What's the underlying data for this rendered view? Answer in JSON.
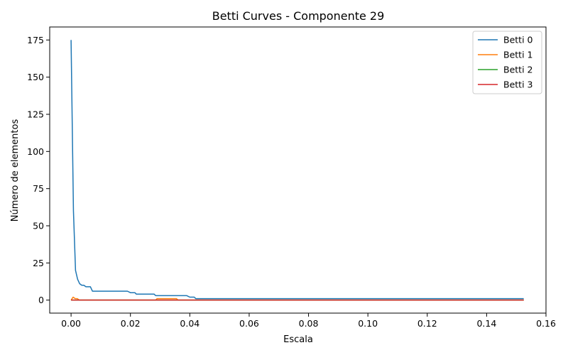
{
  "chart_data": {
    "type": "line",
    "title": "Betti Curves - Componente 29",
    "xlabel": "Escala",
    "ylabel": "Número de elementos",
    "xlim": [
      -0.0072,
      0.16
    ],
    "ylim": [
      -8.75,
      183.75
    ],
    "xticks": [
      0.0,
      0.02,
      0.04,
      0.06,
      0.08,
      0.1,
      0.12,
      0.14,
      0.16
    ],
    "xtick_labels": [
      "0.00",
      "0.02",
      "0.04",
      "0.06",
      "0.08",
      "0.10",
      "0.12",
      "0.14",
      "0.16"
    ],
    "yticks": [
      0,
      25,
      50,
      75,
      100,
      125,
      150,
      175
    ],
    "ytick_labels": [
      "0",
      "25",
      "50",
      "75",
      "100",
      "125",
      "150",
      "175"
    ],
    "grid": false,
    "legend_position": "top-right",
    "series": [
      {
        "name": "Betti 0",
        "color": "#1f77b4",
        "x": [
          0,
          0.0008,
          0.0015,
          0.0022,
          0.0029,
          0.0036,
          0.0043,
          0.005,
          0.0057,
          0.0065,
          0.0072,
          0.0079,
          0.01,
          0.015,
          0.019,
          0.02,
          0.021,
          0.0215,
          0.022,
          0.025,
          0.028,
          0.0285,
          0.03,
          0.035,
          0.0385,
          0.039,
          0.04,
          0.041,
          0.0415,
          0.042,
          0.05,
          0.08,
          0.1,
          0.12,
          0.14,
          0.1525
        ],
        "y": [
          175,
          60,
          20,
          14,
          11,
          10,
          10,
          9,
          9,
          9,
          6,
          6,
          6,
          6,
          6,
          5,
          5,
          5,
          4,
          4,
          4,
          3,
          3,
          3,
          3,
          3,
          2,
          2,
          2,
          1,
          1,
          1,
          1,
          1,
          1,
          1
        ]
      },
      {
        "name": "Betti 1",
        "color": "#ff7f0e",
        "x": [
          0,
          0.0007,
          0.0014,
          0.0021,
          0.0028,
          0.0035,
          0.005,
          0.01,
          0.02,
          0.0285,
          0.029,
          0.03,
          0.0325,
          0.035,
          0.0355,
          0.036,
          0.04,
          0.06,
          0.1,
          0.1525
        ],
        "y": [
          0,
          2,
          1,
          1,
          0,
          0,
          0,
          0,
          0,
          0,
          1,
          1,
          1,
          1,
          1,
          0,
          0,
          0,
          0,
          0
        ]
      },
      {
        "name": "Betti 2",
        "color": "#2ca02c",
        "x": [
          0,
          0.05,
          0.1,
          0.1525
        ],
        "y": [
          0,
          0,
          0,
          0
        ]
      },
      {
        "name": "Betti 3",
        "color": "#d62728",
        "x": [
          0,
          0.05,
          0.1,
          0.1525
        ],
        "y": [
          0,
          0,
          0,
          0
        ]
      }
    ]
  }
}
